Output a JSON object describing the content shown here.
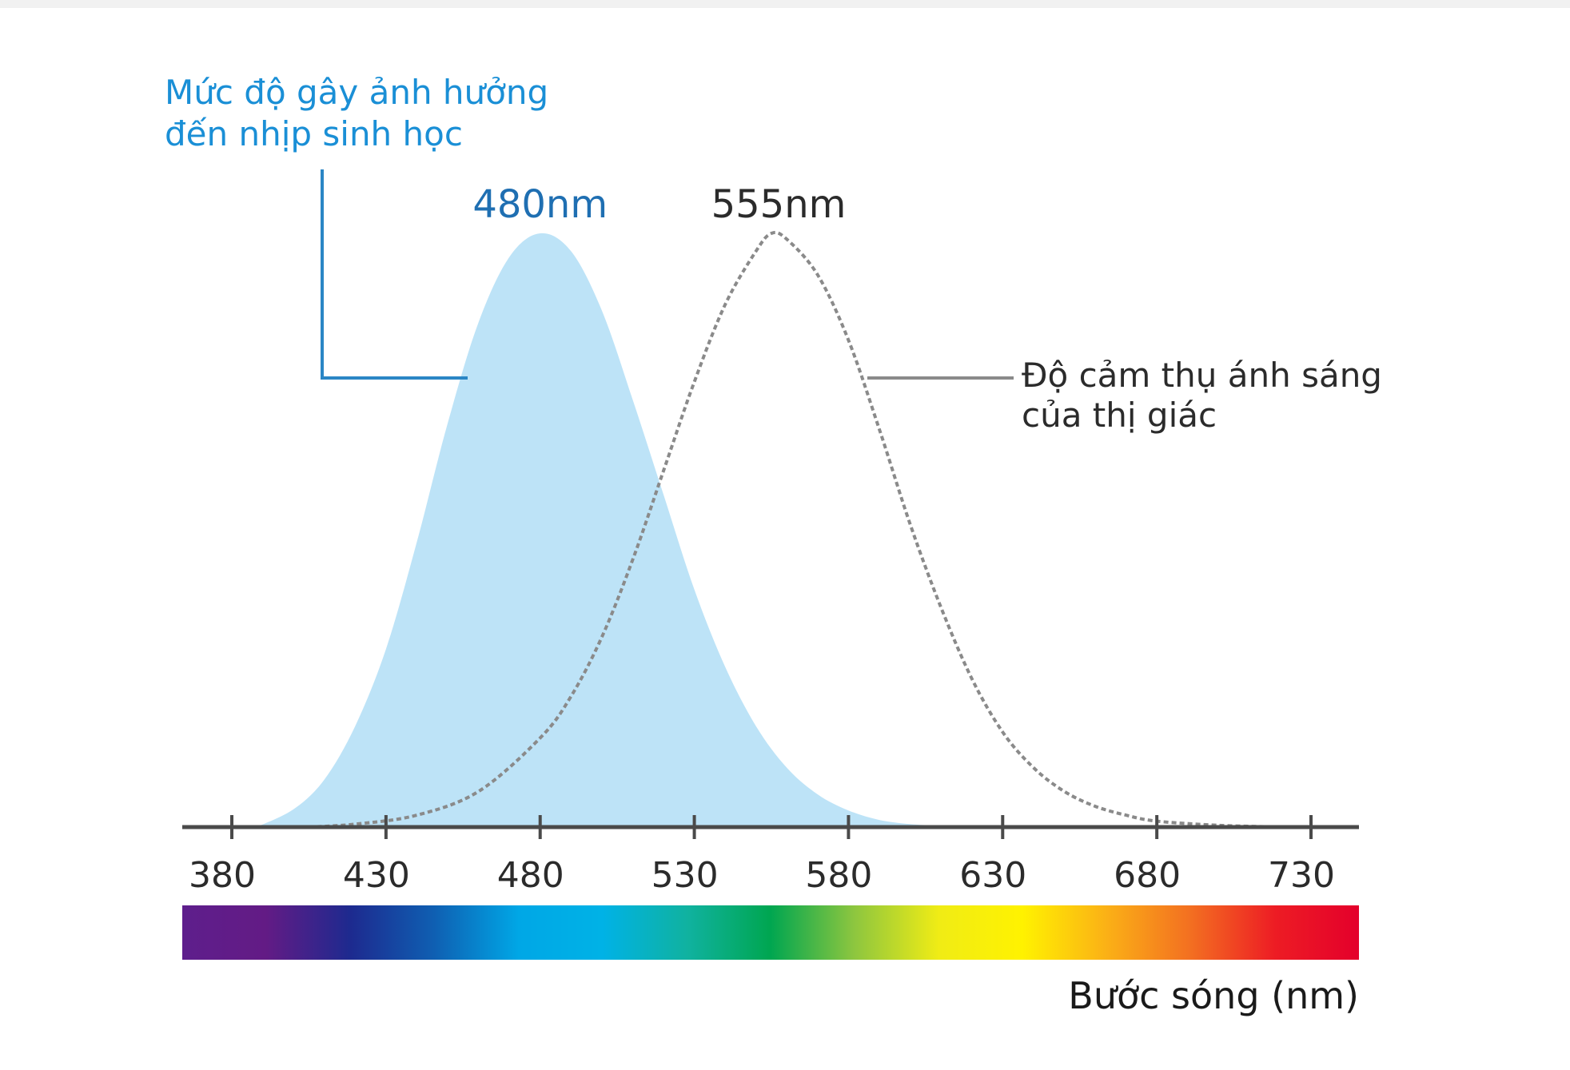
{
  "chart_data": {
    "type": "area",
    "xlabel": "Bước sóng (nm)",
    "xlim": [
      380,
      730
    ],
    "ylim": [
      0,
      1
    ],
    "x_ticks": [
      380,
      430,
      480,
      530,
      580,
      630,
      680,
      730
    ],
    "x_tick_labels": [
      "380",
      "430",
      "480",
      "530",
      "580",
      "630",
      "680",
      "730"
    ],
    "grid": false,
    "series": [
      {
        "label_lines": [
          "Mức độ gây ảnh hưởng",
          "đến nhịp sinh học"
        ],
        "peak_label": "480nm",
        "style": "filled",
        "color": "#bde3f7",
        "label_color": "#1a8fd6",
        "peak_label_color": "#1f6fb2",
        "x": [
          388,
          400,
          410,
          420,
          430,
          440,
          450,
          460,
          470,
          480,
          490,
          500,
          510,
          520,
          530,
          540,
          550,
          560,
          570,
          580,
          590,
          600,
          610,
          620
        ],
        "values": [
          0.0,
          0.03,
          0.08,
          0.17,
          0.3,
          0.48,
          0.68,
          0.85,
          0.96,
          1.0,
          0.97,
          0.87,
          0.72,
          0.56,
          0.4,
          0.27,
          0.17,
          0.1,
          0.055,
          0.028,
          0.012,
          0.005,
          0.002,
          0.0
        ]
      },
      {
        "label_lines": [
          "Độ cảm thụ ánh sáng",
          "của thị giác"
        ],
        "peak_label": "555nm",
        "style": "dotted",
        "color": "#8a8a8a",
        "label_color": "#2b2b2b",
        "peak_label_color": "#2b2b2b",
        "x": [
          405,
          420,
          440,
          460,
          480,
          490,
          500,
          510,
          520,
          530,
          540,
          550,
          555,
          560,
          570,
          580,
          590,
          600,
          610,
          620,
          630,
          640,
          650,
          660,
          670,
          680,
          700,
          720
        ],
        "values": [
          0.0,
          0.005,
          0.02,
          0.06,
          0.15,
          0.22,
          0.32,
          0.45,
          0.6,
          0.75,
          0.88,
          0.97,
          1.0,
          0.99,
          0.93,
          0.82,
          0.67,
          0.51,
          0.37,
          0.25,
          0.16,
          0.1,
          0.06,
          0.035,
          0.02,
          0.01,
          0.003,
          0.0
        ]
      }
    ],
    "spectrum_colors": [
      "#5e1e8c",
      "#631b85",
      "#1d2a8f",
      "#0f5fb2",
      "#00a7e6",
      "#00b2e6",
      "#10b2a0",
      "#00a650",
      "#8dc63f",
      "#f0ec15",
      "#fff200",
      "#fbb016",
      "#f36f21",
      "#ed1c24",
      "#e4002b"
    ]
  }
}
